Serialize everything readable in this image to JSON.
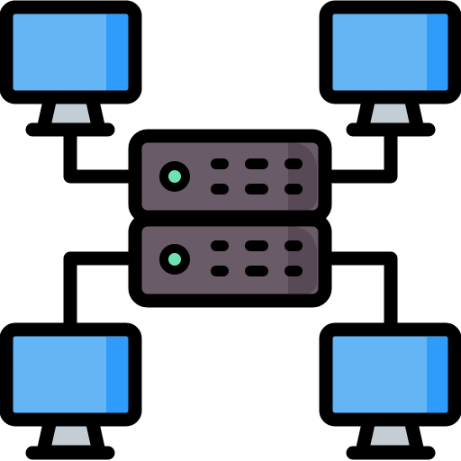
{
  "colors": {
    "outline": "#000000",
    "screen_main": "#64b5f6",
    "screen_shade": "#2f9cfb",
    "stand": "#c5cdd4",
    "server_body": "#6a5b68",
    "server_shade": "#574a56",
    "led": "#6de3b4"
  },
  "icons": {
    "diagram": "network-server-icon",
    "server": "server-rack-icon",
    "computer": "monitor-icon"
  }
}
